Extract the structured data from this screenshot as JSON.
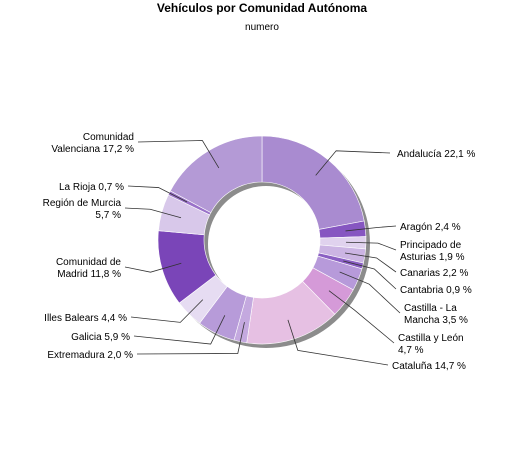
{
  "chart_data": {
    "type": "pie",
    "variant": "donut",
    "title": "Vehículos por Comunidad Autónoma",
    "subtitle": "numero",
    "unit": "%",
    "slices": [
      {
        "name": "Andalucía",
        "value": 22.1,
        "label": "Andalucía 22,1 %",
        "label_lines": [
          "Andalucía 22,1 %"
        ],
        "color": "#a98bd0"
      },
      {
        "name": "Aragón",
        "value": 2.4,
        "label": "Aragón 2,4 %",
        "label_lines": [
          "Aragón 2,4 %"
        ],
        "color": "#8656c1"
      },
      {
        "name": "Principado de Asturias",
        "value": 1.9,
        "label": "Principado de Asturias 1,9 %",
        "label_lines": [
          "Principado de",
          "Asturias 1,9 %"
        ],
        "color": "#e0d2ee"
      },
      {
        "name": "Canarias",
        "value": 2.2,
        "label": "Canarias 2,2 %",
        "label_lines": [
          "Canarias 2,2 %"
        ],
        "color": "#cbb4e3"
      },
      {
        "name": "Cantabria",
        "value": 0.9,
        "label": "Cantabria 0,9 %",
        "label_lines": [
          "Cantabria 0,9 %"
        ],
        "color": "#8a5fc3"
      },
      {
        "name": "Castilla - La Mancha",
        "value": 3.5,
        "label": "Castilla - La Mancha 3,5 %",
        "label_lines": [
          "Castilla - La",
          "Mancha 3,5 %"
        ],
        "color": "#b79ada"
      },
      {
        "name": "Castilla y León",
        "value": 4.7,
        "label": "Castilla y León 4,7 %",
        "label_lines": [
          "Castilla y León",
          "4,7 %"
        ],
        "color": "#d59ad8"
      },
      {
        "name": "Cataluña",
        "value": 14.7,
        "label": "Cataluña 14,7 %",
        "label_lines": [
          "Cataluña 14,7 %"
        ],
        "color": "#e6c0e3"
      },
      {
        "name": "Extremadura",
        "value": 2.0,
        "label": "Extremadura 2,0 %",
        "label_lines": [
          "Extremadura 2,0 %"
        ],
        "color": "#c4a9df"
      },
      {
        "name": "Galicia",
        "value": 5.9,
        "label": "Galicia 5,9 %",
        "label_lines": [
          "Galicia 5,9 %"
        ],
        "color": "#b79bd9"
      },
      {
        "name": "Illes Balears",
        "value": 4.4,
        "label": "Illes Balears 4,4 %",
        "label_lines": [
          "Illes Balears 4,4 %"
        ],
        "color": "#e6dcf2"
      },
      {
        "name": "Comunidad de Madrid",
        "value": 11.8,
        "label": "Comunidad de Madrid 11,8 %",
        "label_lines": [
          "Comunidad de",
          "Madrid 11,8 %"
        ],
        "color": "#7a45b8"
      },
      {
        "name": "Región de Murcia",
        "value": 5.7,
        "label": "Región de Murcia 5,7 %",
        "label_lines": [
          "Región de Murcia",
          "5,7 %"
        ],
        "color": "#d8c8ea"
      },
      {
        "name": "La Rioja",
        "value": 0.7,
        "label": "La Rioja 0,7 %",
        "label_lines": [
          "La Rioja 0,7 %"
        ],
        "color": "#9a72c9"
      },
      {
        "name": "Comunidad Valenciana",
        "value": 17.2,
        "label": "Comunidad Valenciana 17,2 %",
        "label_lines": [
          "Comunidad",
          "Valenciana 17,2 %"
        ],
        "color": "#b49ad6"
      }
    ]
  }
}
